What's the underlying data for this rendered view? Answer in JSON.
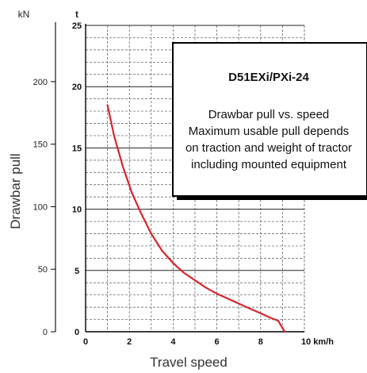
{
  "chart_data": {
    "type": "line",
    "title": "D51EXi/PXi-24",
    "note_lines": [
      "Drawbar pull vs. speed",
      "Maximum usable pull depends",
      "on traction and weight of tractor",
      "including mounted equipment"
    ],
    "xlabel": "Travel speed",
    "ylabel": "Drawbar pull",
    "x_unit": "km/h",
    "y_unit_left": "kN",
    "y_unit_right": "t",
    "xlim": [
      0,
      10
    ],
    "ylim_t": [
      0,
      25
    ],
    "ylim_kN": [
      0,
      245
    ],
    "x_ticks": [
      0,
      2,
      4,
      6,
      8,
      10
    ],
    "x_tick_labels": [
      "0",
      "2",
      "4",
      "6",
      "8",
      "10 km/h"
    ],
    "y_ticks_t": [
      0,
      5,
      10,
      15,
      20,
      25
    ],
    "y_ticks_kN": [
      0,
      50,
      100,
      150,
      200
    ],
    "grid": true,
    "curve_color": "#d7262d",
    "series": [
      {
        "x": [
          1.0,
          1.3,
          1.7,
          2.1,
          2.5,
          3.0,
          3.5,
          4.0,
          4.5,
          5.0,
          5.5,
          6.0,
          6.5,
          7.0,
          7.5,
          8.0,
          8.5,
          8.8,
          9.1
        ],
        "y": [
          18.5,
          16.0,
          13.5,
          11.4,
          9.8,
          8.0,
          6.6,
          5.6,
          4.8,
          4.2,
          3.6,
          3.1,
          2.7,
          2.3,
          1.9,
          1.5,
          1.1,
          0.9,
          0.0
        ]
      }
    ]
  }
}
